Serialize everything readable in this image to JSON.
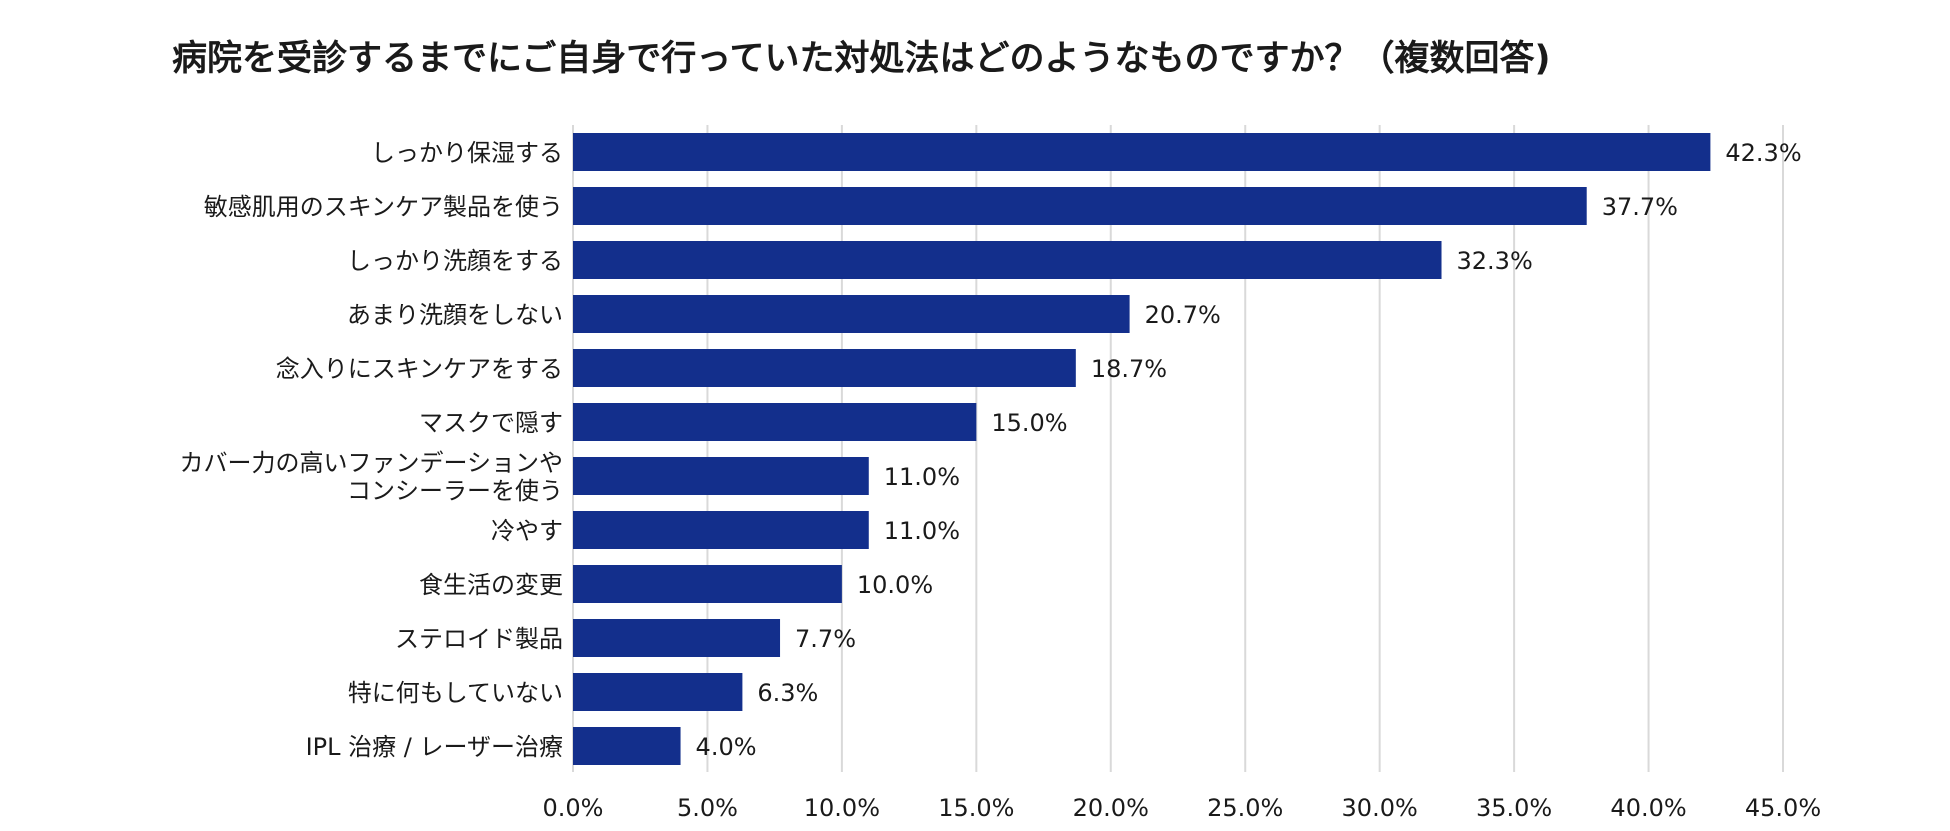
{
  "chart_data": {
    "type": "bar",
    "orientation": "horizontal",
    "title": "病院を受診するまでにご自身で行っていた対処法はどのようなものですか？（複数回答)",
    "xlabel": "",
    "ylabel": "",
    "xlim": [
      0,
      45
    ],
    "grid": true,
    "bar_color": "#132f8c",
    "ticks": [
      "0.0%",
      "5.0%",
      "10.0%",
      "15.0%",
      "20.0%",
      "25.0%",
      "30.0%",
      "35.0%",
      "40.0%",
      "45.0%"
    ],
    "tick_values": [
      0,
      5,
      10,
      15,
      20,
      25,
      30,
      35,
      40,
      45
    ],
    "categories": [
      "しっかり保湿する",
      "敏感肌用のスキンケア製品を使う",
      "しっかり洗顔をする",
      "あまり洗顔をしない",
      "念入りにスキンケアをする",
      "マスクで隠す",
      "カバー力の高いファンデーションやコンシーラーを使う",
      "冷やす",
      "食生活の変更",
      "ステロイド製品",
      "特に何もしていない",
      "IPL 治療 / レーザー治療"
    ],
    "category_lines": [
      [
        "しっかり保湿する"
      ],
      [
        "敏感肌用のスキンケア製品を使う"
      ],
      [
        "しっかり洗顔をする"
      ],
      [
        "あまり洗顔をしない"
      ],
      [
        "念入りにスキンケアをする"
      ],
      [
        "マスクで隠す"
      ],
      [
        "カバー力の高いファンデーションや",
        "コンシーラーを使う"
      ],
      [
        "冷やす"
      ],
      [
        "食生活の変更"
      ],
      [
        "ステロイド製品"
      ],
      [
        "特に何もしていない"
      ],
      [
        "IPL 治療 / レーザー治療"
      ]
    ],
    "values": [
      42.3,
      37.7,
      32.3,
      20.7,
      18.7,
      15.0,
      11.0,
      11.0,
      10.0,
      7.7,
      6.3,
      4.0
    ],
    "value_labels": [
      "42.3%",
      "37.7%",
      "32.3%",
      "20.7%",
      "18.7%",
      "15.0%",
      "11.0%",
      "11.0%",
      "10.0%",
      "7.7%",
      "6.3%",
      "4.0%"
    ]
  }
}
